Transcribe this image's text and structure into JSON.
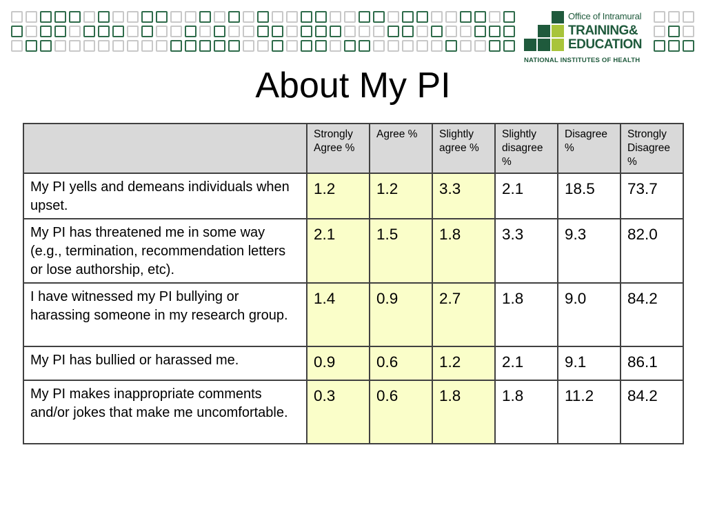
{
  "logo": {
    "office": "Office of Intramural",
    "training": "TRAINING&",
    "education": "EDUCATION",
    "nih": "NATIONAL INSTITUTES OF HEALTH",
    "colors": {
      "dark_green": "#1f5a3c",
      "light_green": "#a8c43a"
    }
  },
  "title": "About My PI",
  "table": {
    "headers": [
      "",
      "Strongly Agree  %",
      "Agree %",
      "Slightly agree %",
      "Slightly disagree %",
      "Disagree %",
      "Strongly Disagree %"
    ],
    "rows": [
      {
        "statement": "My PI yells and demeans individuals when upset.",
        "values": [
          "1.2",
          "1.2",
          "3.3",
          "2.1",
          "18.5",
          "73.7"
        ]
      },
      {
        "statement": "My PI has threatened me in some way (e.g., termination, recommendation letters or lose authorship, etc).",
        "values": [
          "2.1",
          "1.5",
          "1.8",
          "3.3",
          "9.3",
          "82.0"
        ]
      },
      {
        "statement": "I have witnessed my PI bullying or harassing someone in my research group.",
        "values": [
          "1.4",
          "0.9",
          "2.7",
          "1.8",
          "9.0",
          "84.2"
        ]
      },
      {
        "statement": "My PI has bullied or harassed me.",
        "values": [
          "0.9",
          "0.6",
          "1.2",
          "2.1",
          "9.1",
          "86.1"
        ]
      },
      {
        "statement": "My PI makes inappropriate comments and/or jokes that make me uncomfortable.",
        "values": [
          "0.3",
          "0.6",
          "1.8",
          "1.8",
          "11.2",
          "84.2"
        ]
      }
    ],
    "highlight_color": "#fafec9",
    "header_color": "#d9d9d9"
  }
}
